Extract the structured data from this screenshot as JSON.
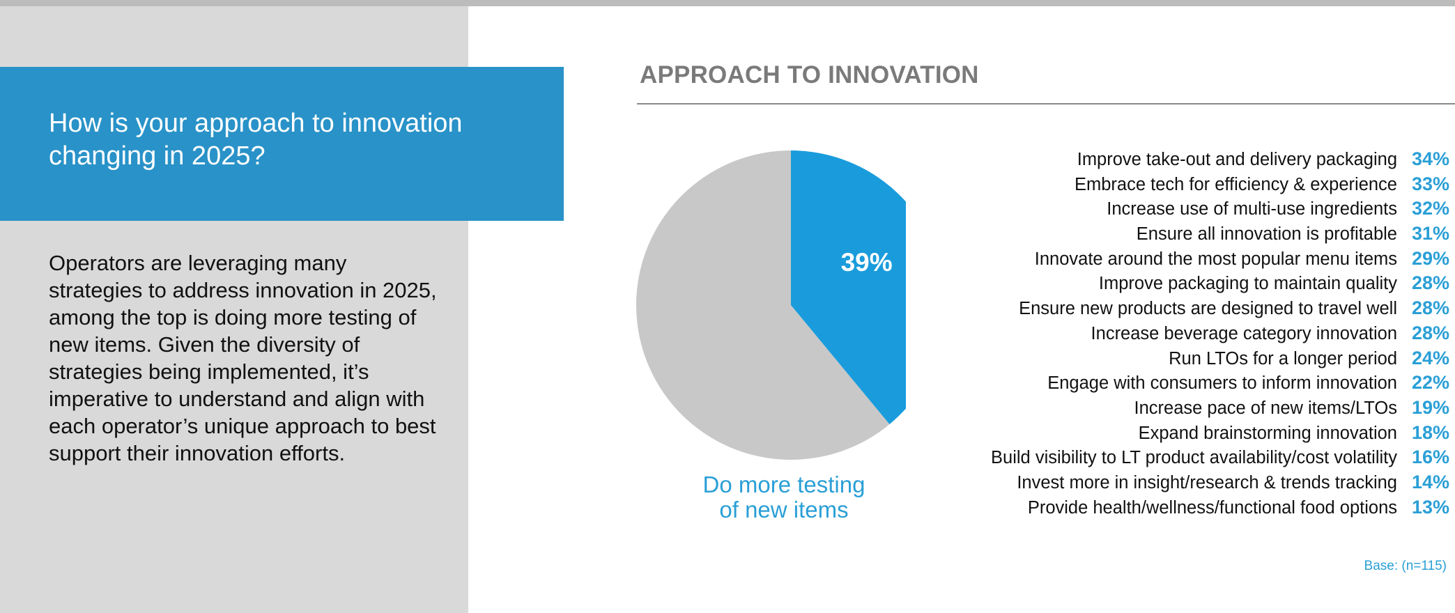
{
  "colors": {
    "accent_blue": "#2992c8",
    "slice_blue": "#1a9cdc",
    "slice_gray": "#c8c8c8",
    "left_panel_gray": "#d9d9d9",
    "value_blue": "#2a9fd6"
  },
  "question": "How is your approach to innovation changing in 2025?",
  "body_text": "Operators are leveraging many strategies to address innovation in 2025, among the top is doing more testing of new items. Given the diversity of strategies being implemented, it’s imperative to understand and align with each operator’s unique approach to best support their innovation efforts.",
  "chart_data": [
    {
      "type": "pie",
      "title": "APPROACH TO INNOVATION",
      "slices": [
        {
          "label": "Do more testing of new items",
          "value": 39,
          "value_label": "39%"
        },
        {
          "label": "",
          "value": 61
        }
      ],
      "caption_lines": [
        "Do more testing",
        "of new items"
      ]
    },
    {
      "type": "bar",
      "categories": [
        "Improve take-out and delivery packaging",
        "Embrace tech for efficiency & experience",
        "Increase use of multi-use ingredients",
        "Ensure all innovation is profitable",
        "Innovate around the most popular menu items",
        "Improve packaging to maintain quality",
        "Ensure new products are designed to travel well",
        "Increase beverage category innovation",
        "Run LTOs for a longer period",
        "Engage with consumers to inform innovation",
        "Increase pace of new items/LTOs",
        "Expand brainstorming innovation",
        "Build visibility to LT product availability/cost volatility",
        "Invest more in insight/research & trends tracking",
        "Provide health/wellness/functional food options"
      ],
      "values": [
        34,
        33,
        32,
        31,
        29,
        28,
        28,
        28,
        24,
        22,
        19,
        18,
        16,
        14,
        13
      ],
      "value_labels": [
        "34%",
        "33%",
        "32%",
        "31%",
        "29%",
        "28%",
        "28%",
        "28%",
        "24%",
        "22%",
        "19%",
        "18%",
        "16%",
        "14%",
        "13%"
      ],
      "base_note": "Base: (n=115)"
    }
  ]
}
